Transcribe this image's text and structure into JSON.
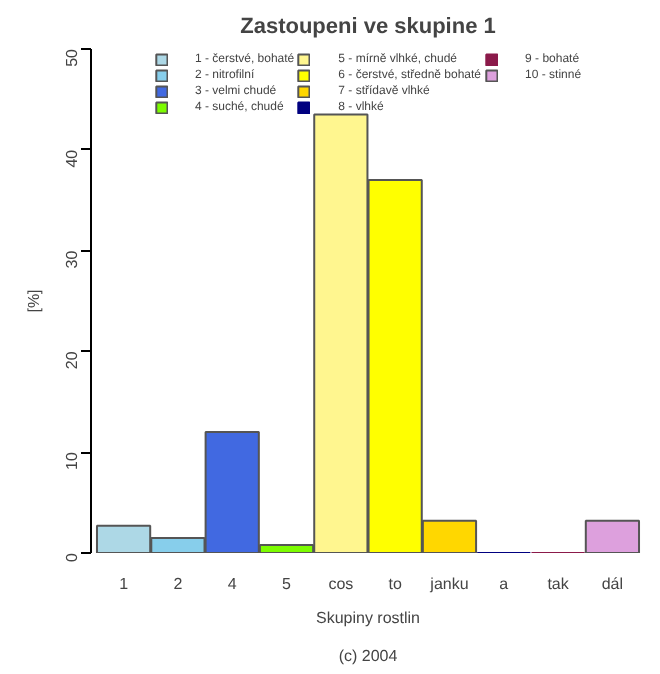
{
  "chart_data": {
    "type": "bar",
    "title": "Zastoupeni ve skupine 1",
    "xlabel": "Skupiny rostlin",
    "ylabel": "[%]",
    "annotations": [
      "(c) 2004"
    ],
    "categories": [
      "1",
      "2",
      "4",
      "5",
      "cos",
      "to",
      "janku",
      "a",
      "tak",
      "dál"
    ],
    "stacked": true,
    "ylim": [
      0,
      50
    ],
    "yticks": [
      0,
      10,
      20,
      30,
      40,
      50
    ],
    "legend": "top",
    "grid": false,
    "series": [
      {
        "name": "1 - čerstvé, bohaté",
        "color": "#add8e6",
        "values": [
          2.7,
          null,
          null,
          null,
          null,
          null,
          null,
          null,
          null,
          null
        ]
      },
      {
        "name": "2 - nitrofilní",
        "color": "#87ceeb",
        "values": [
          null,
          1.5,
          null,
          null,
          null,
          null,
          null,
          null,
          null,
          null
        ]
      },
      {
        "name": "3 - velmi chudé",
        "color": "#4169e1",
        "values": [
          null,
          null,
          12,
          null,
          null,
          null,
          null,
          null,
          null,
          null
        ]
      },
      {
        "name": "4 - suché, chudé",
        "color": "#7cfc00",
        "values": [
          null,
          null,
          null,
          0.8,
          null,
          null,
          null,
          null,
          null,
          null
        ]
      },
      {
        "name": "5 - mírně vlhké, chudé",
        "color": "#fff68f",
        "values": [
          null,
          null,
          null,
          null,
          43.5,
          null,
          null,
          null,
          null,
          null
        ]
      },
      {
        "name": "6 - čerstvé, středně bohaté",
        "color": "#ffff00",
        "values": [
          null,
          null,
          null,
          null,
          null,
          37,
          null,
          null,
          null,
          null
        ]
      },
      {
        "name": "7 - střídavě vlhké",
        "color": "#ffd700",
        "values": [
          null,
          null,
          null,
          null,
          null,
          null,
          3.2,
          null,
          null,
          null
        ]
      },
      {
        "name": "8 - vlhké",
        "color": "#000080",
        "values": [
          null,
          null,
          null,
          null,
          null,
          null,
          null,
          0,
          null,
          null
        ]
      },
      {
        "name": "9 - bohaté",
        "color": "#8b1a4a",
        "values": [
          null,
          null,
          null,
          null,
          null,
          null,
          null,
          null,
          0,
          null
        ]
      },
      {
        "name": "10 - stinné",
        "color": "#dda0dd",
        "values": [
          null,
          null,
          null,
          null,
          null,
          null,
          null,
          null,
          null,
          3.2
        ]
      }
    ]
  }
}
